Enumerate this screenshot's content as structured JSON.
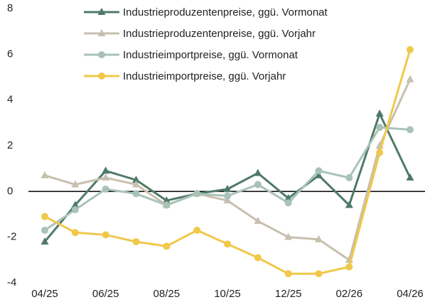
{
  "chart_data": {
    "type": "line",
    "categories": [
      "04/25",
      null,
      "06/25",
      null,
      "08/25",
      null,
      "10/25",
      null,
      "12/25",
      null,
      "02/26",
      null,
      "04/26"
    ],
    "series": [
      {
        "name": "Industrieproduzentenpreise, ggü. Vormonat",
        "color": "#4e7a68",
        "marker": "triangle",
        "values": [
          -2.2,
          -0.6,
          0.9,
          0.5,
          -0.4,
          -0.1,
          0.1,
          0.8,
          -0.3,
          0.7,
          -0.6,
          3.4,
          0.6
        ]
      },
      {
        "name": "Industrieproduzentenpreise, ggü. Vorjahr",
        "color": "#c8bfb0",
        "marker": "triangle",
        "values": [
          0.7,
          0.3,
          0.6,
          0.3,
          -0.6,
          -0.1,
          -0.4,
          -1.3,
          -2.0,
          -2.1,
          -3.0,
          2.0,
          4.9
        ]
      },
      {
        "name": "Industrieimportpreise, ggü. Vormonat",
        "color": "#a9c2b8",
        "marker": "circle",
        "values": [
          -1.7,
          -0.8,
          0.1,
          -0.1,
          -0.6,
          -0.1,
          -0.2,
          0.3,
          -0.5,
          0.9,
          0.6,
          2.8,
          2.7
        ]
      },
      {
        "name": "Industrieimportpreise, ggü. Vorjahr",
        "color": "#f0c84a",
        "marker": "circle",
        "values": [
          -1.1,
          -1.8,
          -1.9,
          -2.2,
          -2.4,
          -1.7,
          -2.3,
          -2.9,
          -3.6,
          -3.6,
          -3.3,
          1.7,
          6.2
        ]
      }
    ],
    "ylim": [
      -4,
      8
    ],
    "yticks": [
      -4,
      -2,
      0,
      2,
      4,
      6,
      8
    ],
    "grid": false,
    "legend": "top"
  }
}
